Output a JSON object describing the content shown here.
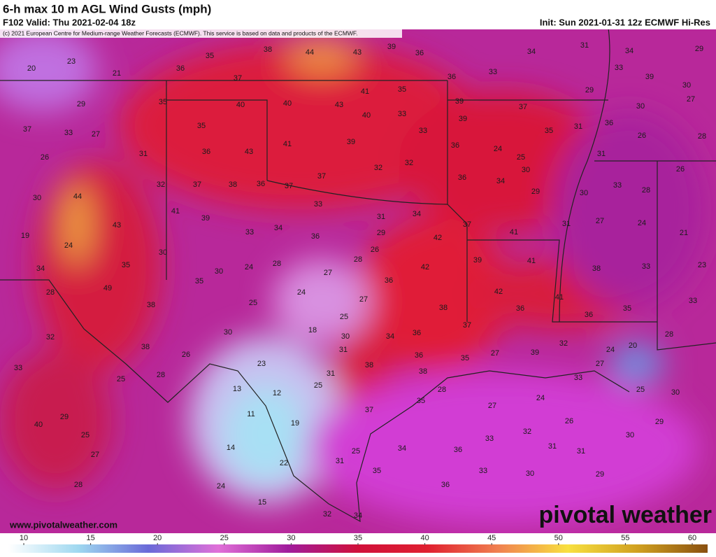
{
  "header": {
    "title": "6-h max 10 m AGL Wind Gusts (mph)",
    "valid": "F102 Valid: Thu 2021-02-04 18z",
    "init": "Init: Sun 2021-01-31 12z ECMWF Hi-Res",
    "copyright": "(c) 2021 European Centre for Medium-range Weather Forecasts (ECMWF). This service is based on data and products of the ECMWF."
  },
  "map_labels": [
    20,
    23,
    21,
    36,
    35,
    38,
    44,
    43,
    39,
    36,
    34,
    31,
    34,
    29,
    37,
    36,
    33,
    33,
    39,
    30,
    27,
    29,
    35,
    40,
    40,
    43,
    41,
    35,
    39,
    37,
    29,
    30,
    37,
    33,
    27,
    35,
    40,
    33,
    39,
    33,
    35,
    31,
    36,
    26,
    28,
    26,
    31,
    36,
    43,
    41,
    39,
    36,
    24,
    25,
    31,
    32,
    37,
    38,
    36,
    37,
    37,
    32,
    32,
    30,
    26,
    30,
    44,
    36,
    34,
    29,
    30,
    33,
    28,
    41,
    39,
    33,
    31,
    34,
    37,
    31,
    27,
    24,
    21,
    19,
    43,
    33,
    34,
    36,
    29,
    42,
    41,
    24,
    26,
    30,
    30,
    24,
    28,
    28,
    42,
    39,
    41,
    38,
    33,
    23,
    34,
    35,
    27,
    49,
    28,
    35,
    36,
    24,
    27,
    42,
    41,
    36,
    36,
    35,
    33,
    38,
    25,
    25,
    38,
    37,
    18,
    30,
    34,
    36,
    32,
    30,
    38,
    26,
    31,
    36,
    35,
    27,
    39,
    32,
    24,
    20,
    28,
    33,
    23,
    38,
    38,
    27,
    25,
    28,
    31,
    25,
    33,
    13,
    12,
    28,
    25,
    30,
    24,
    27,
    35,
    37,
    11,
    29,
    40,
    19,
    26,
    29,
    32,
    25,
    33,
    30,
    14,
    34,
    36,
    31,
    31,
    27,
    25,
    22,
    31,
    35,
    33,
    30,
    29,
    28,
    36,
    24,
    15,
    32,
    34
  ],
  "colorbar": {
    "ticks": [
      10,
      15,
      20,
      25,
      30,
      35,
      40,
      45,
      50,
      55,
      60
    ]
  },
  "footer": {
    "website": "www.pivotalweather.com",
    "logo": "pivotal weather"
  }
}
